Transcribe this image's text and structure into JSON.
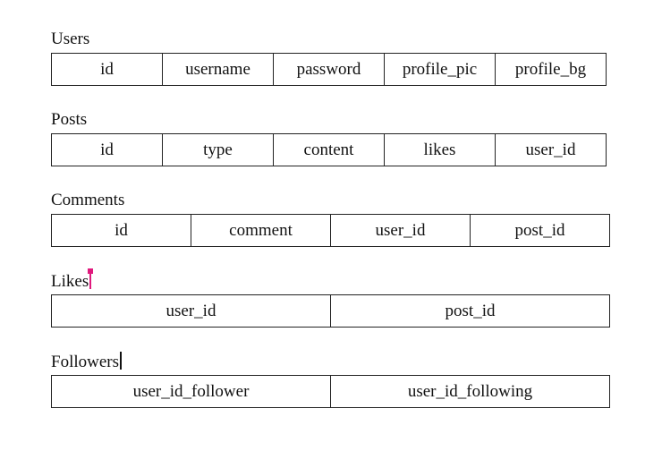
{
  "tables": [
    {
      "name": "Users",
      "columns": [
        "id",
        "username",
        "password",
        "profile_pic",
        "profile_bg"
      ]
    },
    {
      "name": "Posts",
      "columns": [
        "id",
        "type",
        "content",
        "likes",
        "user_id"
      ]
    },
    {
      "name": "Comments",
      "columns": [
        "id",
        "comment",
        "user_id",
        "post_id"
      ]
    },
    {
      "name": "Likes",
      "columns": [
        "user_id",
        "post_id"
      ]
    },
    {
      "name": "Followers",
      "columns": [
        "user_id_follower",
        "user_id_following"
      ]
    }
  ],
  "colors": {
    "border": "#222222",
    "text": "#111111",
    "selection_caret": "#e0197d"
  }
}
